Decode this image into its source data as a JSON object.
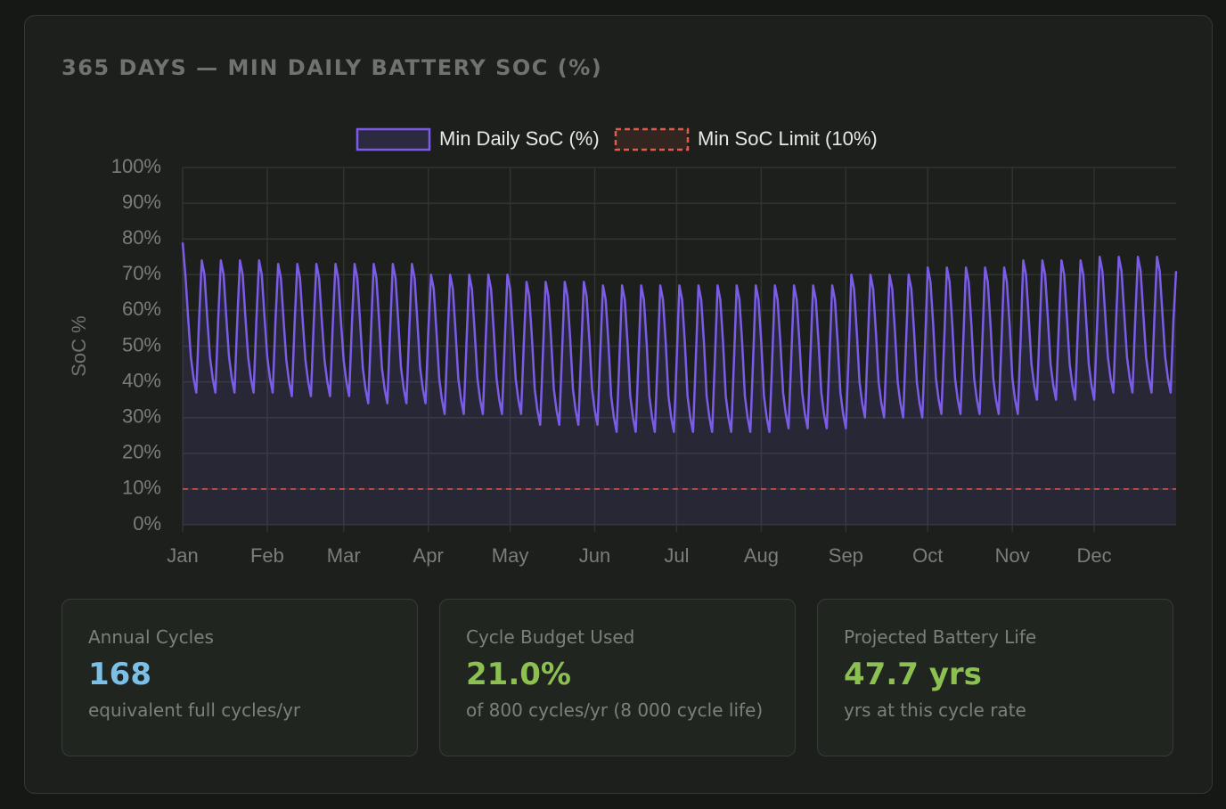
{
  "panel_title": "365 DAYS — MIN DAILY BATTERY SOC (%)",
  "chart_data": {
    "type": "line",
    "y_label": "SoC %",
    "categories": [
      "Jan",
      null,
      null,
      null,
      null,
      null,
      null,
      null,
      null,
      null,
      null,
      null,
      null,
      null,
      null,
      null,
      null,
      null,
      null,
      null,
      null,
      null,
      null,
      null,
      null,
      null,
      null,
      null,
      null,
      null,
      null,
      "Feb",
      null,
      null,
      null,
      null,
      null,
      null,
      null,
      null,
      null,
      null,
      null,
      null,
      null,
      null,
      null,
      null,
      null,
      null,
      null,
      null,
      null,
      null,
      null,
      null,
      null,
      null,
      null,
      "Mar",
      null,
      null,
      null,
      null,
      null,
      null,
      null,
      null,
      null,
      null,
      null,
      null,
      null,
      null,
      null,
      null,
      null,
      null,
      null,
      null,
      null,
      null,
      null,
      null,
      null,
      null,
      null,
      null,
      null,
      null,
      "Apr",
      null,
      null,
      null,
      null,
      null,
      null,
      null,
      null,
      null,
      null,
      null,
      null,
      null,
      null,
      null,
      null,
      null,
      null,
      null,
      null,
      null,
      null,
      null,
      null,
      null,
      null,
      null,
      null,
      null,
      "May",
      null,
      null,
      null,
      null,
      null,
      null,
      null,
      null,
      null,
      null,
      null,
      null,
      null,
      null,
      null,
      null,
      null,
      null,
      null,
      null,
      null,
      null,
      null,
      null,
      null,
      null,
      null,
      null,
      null,
      null,
      "Jun",
      null,
      null,
      null,
      null,
      null,
      null,
      null,
      null,
      null,
      null,
      null,
      null,
      null,
      null,
      null,
      null,
      null,
      null,
      null,
      null,
      null,
      null,
      null,
      null,
      null,
      null,
      null,
      null,
      null,
      "Jul",
      null,
      null,
      null,
      null,
      null,
      null,
      null,
      null,
      null,
      null,
      null,
      null,
      null,
      null,
      null,
      null,
      null,
      null,
      null,
      null,
      null,
      null,
      null,
      null,
      null,
      null,
      null,
      null,
      null,
      null,
      "Aug",
      null,
      null,
      null,
      null,
      null,
      null,
      null,
      null,
      null,
      null,
      null,
      null,
      null,
      null,
      null,
      null,
      null,
      null,
      null,
      null,
      null,
      null,
      null,
      null,
      null,
      null,
      null,
      null,
      null,
      null,
      "Sep",
      null,
      null,
      null,
      null,
      null,
      null,
      null,
      null,
      null,
      null,
      null,
      null,
      null,
      null,
      null,
      null,
      null,
      null,
      null,
      null,
      null,
      null,
      null,
      null,
      null,
      null,
      null,
      null,
      null,
      "Oct",
      null,
      null,
      null,
      null,
      null,
      null,
      null,
      null,
      null,
      null,
      null,
      null,
      null,
      null,
      null,
      null,
      null,
      null,
      null,
      null,
      null,
      null,
      null,
      null,
      null,
      null,
      null,
      null,
      null,
      null,
      "Nov",
      null,
      null,
      null,
      null,
      null,
      null,
      null,
      null,
      null,
      null,
      null,
      null,
      null,
      null,
      null,
      null,
      null,
      null,
      null,
      null,
      null,
      null,
      null,
      null,
      null,
      null,
      null,
      null,
      null,
      "Dec",
      null,
      null,
      null,
      null,
      null,
      null,
      null,
      null,
      null,
      null,
      null,
      null,
      null,
      null,
      null,
      null,
      null,
      null,
      null,
      null,
      null,
      null,
      null,
      null,
      null,
      null,
      null,
      null,
      null,
      null
    ],
    "series": [
      {
        "name": "Min Daily SoC (%)",
        "color": "#7b5ce6",
        "fill": "rgba(110,90,220,0.14)",
        "values": [
          79,
          70,
          58,
          47,
          41,
          37,
          57,
          74,
          70,
          58,
          47,
          41,
          37,
          57,
          74,
          70,
          58,
          47,
          41,
          37,
          57,
          74,
          70,
          58,
          47,
          41,
          37,
          57,
          74,
          70,
          58,
          47,
          41,
          37,
          57,
          73,
          69,
          57,
          46,
          40,
          36,
          56,
          73,
          69,
          57,
          46,
          40,
          36,
          56,
          73,
          69,
          57,
          46,
          40,
          36,
          56,
          73,
          69,
          57,
          46,
          40,
          36,
          56,
          73,
          69,
          57,
          44,
          38,
          34,
          54,
          73,
          69,
          57,
          44,
          38,
          34,
          54,
          73,
          69,
          57,
          44,
          38,
          34,
          54,
          73,
          69,
          57,
          44,
          38,
          34,
          54,
          70,
          66,
          54,
          41,
          35,
          31,
          51,
          70,
          66,
          54,
          41,
          35,
          31,
          51,
          70,
          66,
          54,
          41,
          35,
          31,
          51,
          70,
          66,
          54,
          41,
          35,
          31,
          51,
          70,
          66,
          54,
          41,
          35,
          31,
          51,
          68,
          64,
          52,
          38,
          32,
          28,
          48,
          68,
          64,
          52,
          38,
          32,
          28,
          48,
          68,
          64,
          52,
          38,
          32,
          28,
          48,
          68,
          64,
          52,
          38,
          32,
          28,
          48,
          67,
          63,
          51,
          36,
          30,
          26,
          46,
          67,
          63,
          51,
          36,
          30,
          26,
          46,
          67,
          63,
          51,
          36,
          30,
          26,
          46,
          67,
          63,
          51,
          36,
          30,
          26,
          46,
          67,
          63,
          51,
          36,
          30,
          26,
          46,
          67,
          63,
          51,
          36,
          30,
          26,
          46,
          67,
          63,
          51,
          36,
          30,
          26,
          46,
          67,
          63,
          51,
          36,
          30,
          26,
          46,
          67,
          63,
          51,
          36,
          30,
          26,
          46,
          67,
          63,
          51,
          37,
          31,
          27,
          47,
          67,
          63,
          51,
          37,
          31,
          27,
          47,
          67,
          63,
          51,
          37,
          31,
          27,
          47,
          67,
          63,
          51,
          37,
          31,
          27,
          47,
          70,
          66,
          54,
          40,
          34,
          30,
          50,
          70,
          66,
          54,
          40,
          34,
          30,
          50,
          70,
          66,
          54,
          40,
          34,
          30,
          50,
          70,
          66,
          54,
          40,
          34,
          30,
          50,
          72,
          68,
          56,
          41,
          35,
          31,
          51,
          72,
          68,
          56,
          41,
          35,
          31,
          51,
          72,
          68,
          56,
          41,
          35,
          31,
          51,
          72,
          68,
          56,
          41,
          35,
          31,
          51,
          72,
          68,
          56,
          41,
          35,
          31,
          51,
          74,
          70,
          58,
          45,
          39,
          35,
          55,
          74,
          70,
          58,
          45,
          39,
          35,
          55,
          74,
          70,
          58,
          45,
          39,
          35,
          55,
          74,
          70,
          58,
          45,
          39,
          35,
          55,
          75,
          71,
          59,
          47,
          41,
          37,
          57,
          75,
          71,
          59,
          47,
          41,
          37,
          57,
          75,
          71,
          59,
          47,
          41,
          37,
          57,
          75,
          71,
          59,
          47,
          41,
          37,
          57,
          71
        ]
      },
      {
        "name": "Min SoC Limit (10%)",
        "color": "#e05a4e",
        "dashed": true,
        "value": 10
      }
    ],
    "ylim": [
      0,
      100
    ],
    "yticks": [
      {
        "value": 0,
        "label": "0%"
      },
      {
        "value": 10,
        "label": "10%"
      },
      {
        "value": 20,
        "label": "20%"
      },
      {
        "value": 30,
        "label": "30%"
      },
      {
        "value": 40,
        "label": "40%"
      },
      {
        "value": 50,
        "label": "50%"
      },
      {
        "value": 60,
        "label": "60%"
      },
      {
        "value": 70,
        "label": "70%"
      },
      {
        "value": 80,
        "label": "80%"
      },
      {
        "value": 90,
        "label": "90%"
      },
      {
        "value": 100,
        "label": "100%"
      }
    ],
    "grid": true,
    "legend": "top"
  },
  "cards": [
    {
      "label": "Annual Cycles",
      "value": "168",
      "note": "equivalent full cycles/yr",
      "color": "#7cc0e8"
    },
    {
      "label": "Cycle Budget Used",
      "value": "21.0%",
      "note": "of 800 cycles/yr (8 000 cycle life)",
      "color": "#8cc152"
    },
    {
      "label": "Projected Battery Life",
      "value": "47.7 yrs",
      "note": "yrs at this cycle rate",
      "color": "#8cc152"
    }
  ]
}
